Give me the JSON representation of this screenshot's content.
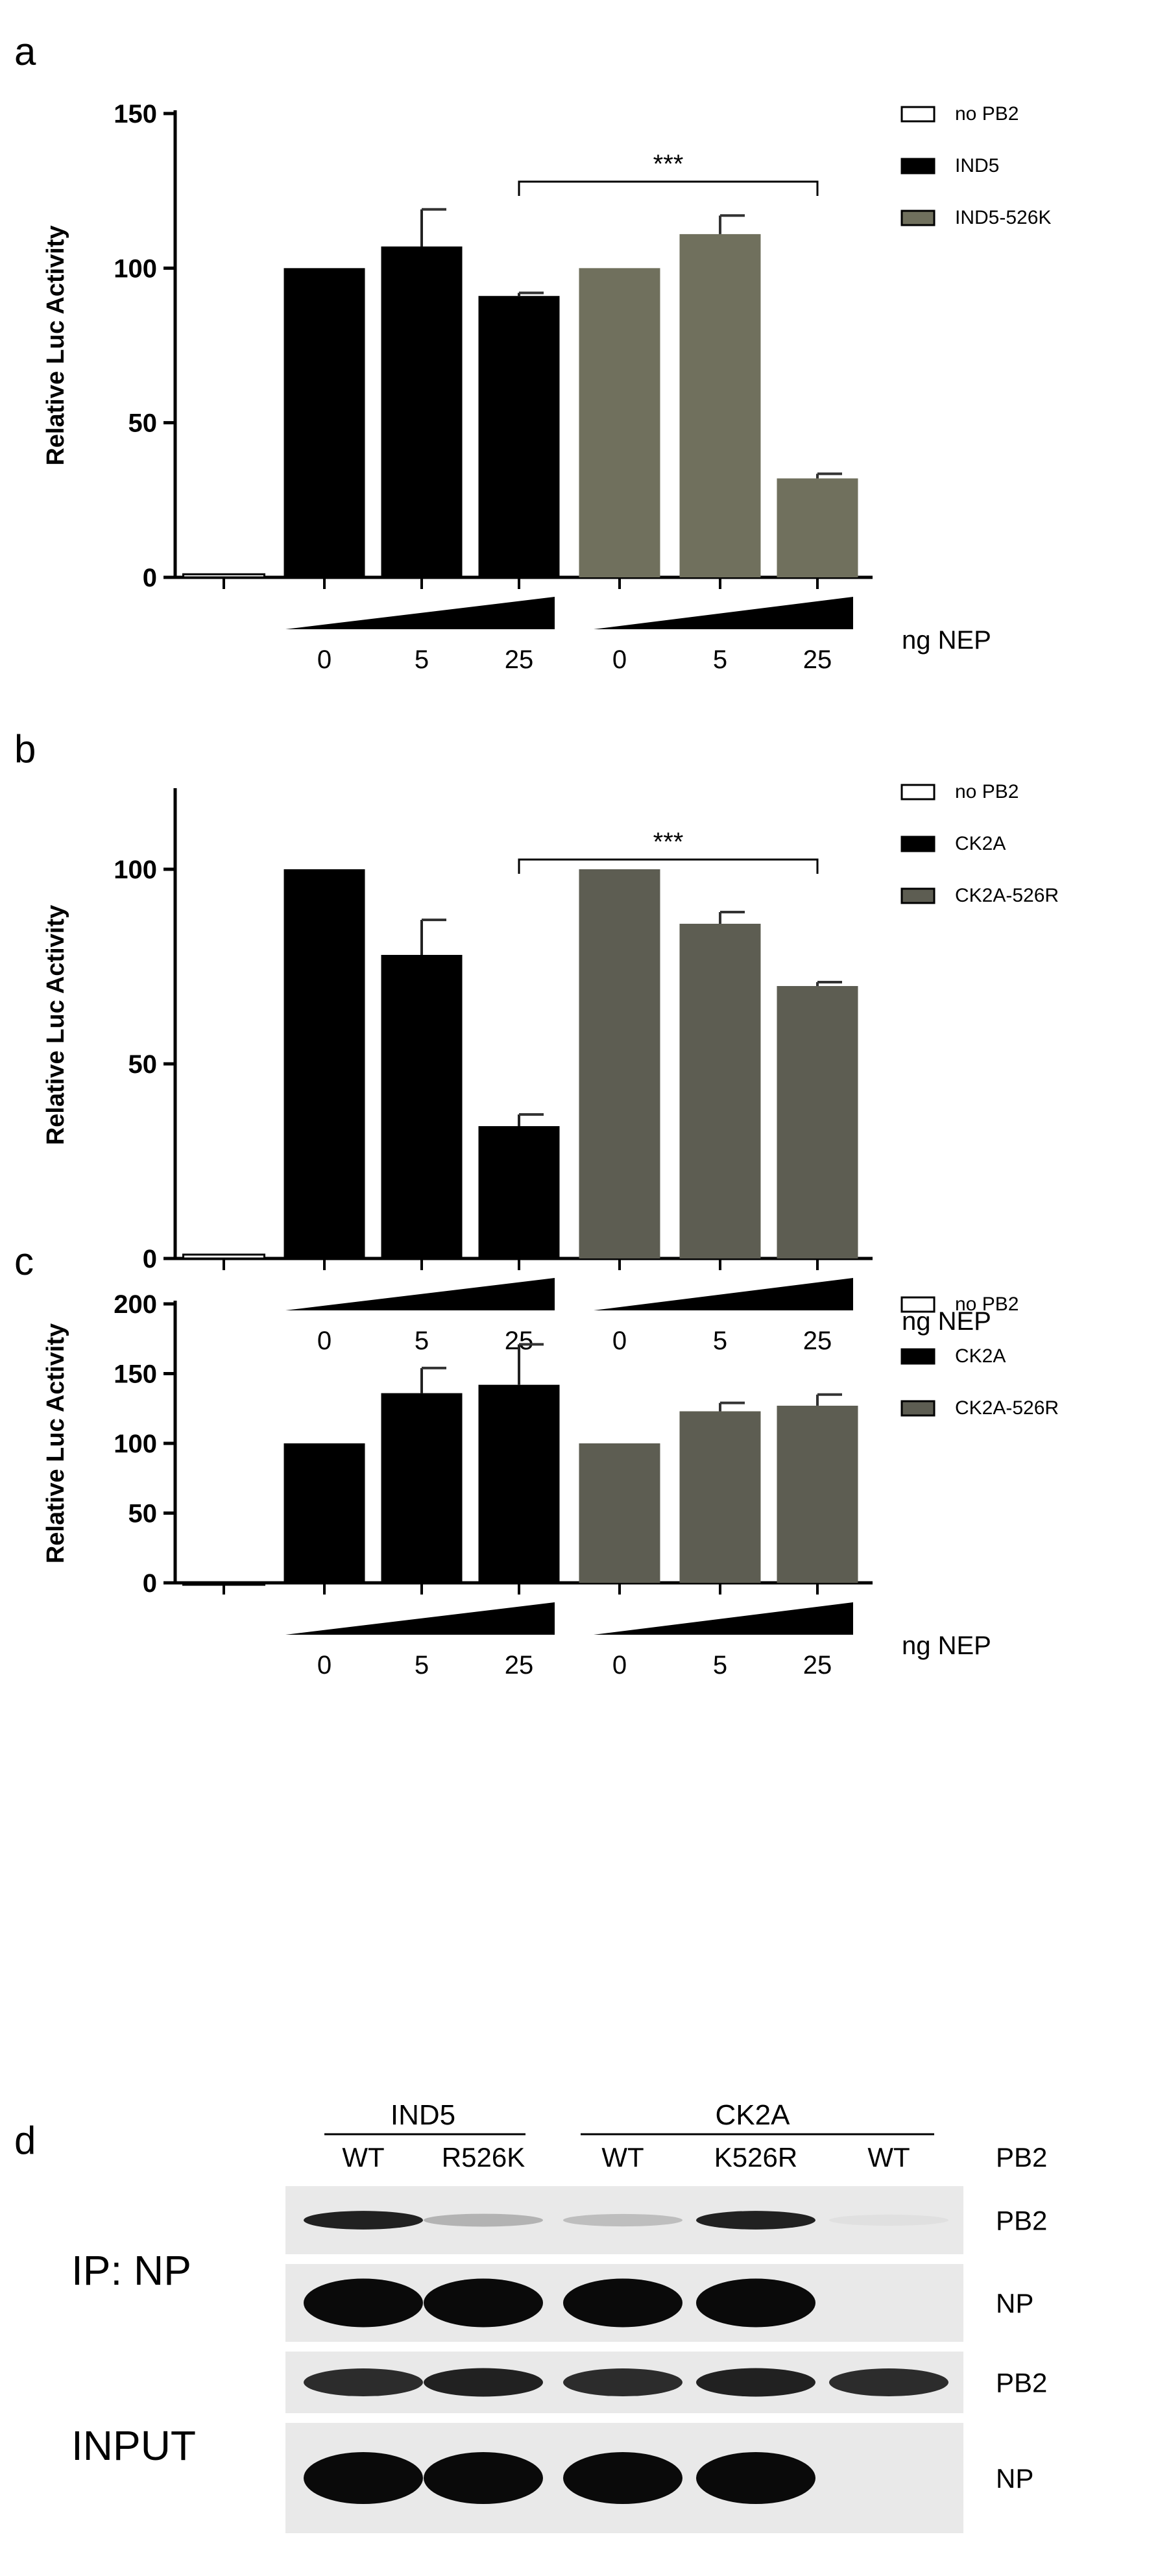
{
  "colors": {
    "no_pb2": "#ffffff",
    "ind5": "#000000",
    "ind5_526k": "#70705d",
    "ck2a": "#000000",
    "ck2a_526r": "#5d5d52",
    "text": "#111111"
  },
  "icons": {
    "significance": "bracket-icon",
    "gradient": "wedge-icon"
  },
  "chart_data": [
    {
      "panel": "a",
      "type": "bar",
      "ylabel": "Relative Luc Activity",
      "xlabel": "ng NEP",
      "ylim": [
        0,
        150
      ],
      "yticks": [
        0,
        50,
        100,
        150
      ],
      "categories": [
        "",
        "0",
        "5",
        "25",
        "0",
        "5",
        "25"
      ],
      "legend": [
        "no PB2",
        "IND5",
        "IND5-526K"
      ],
      "significance": "***",
      "series": [
        {
          "name": "no PB2",
          "color": "#ffffff",
          "values": [
            1,
            null,
            null,
            null,
            null,
            null,
            null
          ],
          "errors": [
            0,
            0,
            0,
            0,
            0,
            0,
            0
          ]
        },
        {
          "name": "IND5",
          "color": "#000000",
          "values": [
            null,
            100,
            107,
            91,
            null,
            null,
            null
          ],
          "errors": [
            0,
            0,
            12,
            1,
            0,
            0,
            0
          ]
        },
        {
          "name": "IND5-526K",
          "color": "#70705d",
          "values": [
            null,
            null,
            null,
            null,
            100,
            111,
            32
          ],
          "errors": [
            0,
            0,
            0,
            0,
            0,
            6,
            1.5
          ]
        }
      ]
    },
    {
      "panel": "b",
      "type": "bar",
      "ylabel": "Relative Luc Activity",
      "xlabel": "ng NEP",
      "ylim": [
        0,
        120
      ],
      "yticks": [
        0,
        50,
        100
      ],
      "categories": [
        "",
        "0",
        "5",
        "25",
        "0",
        "5",
        "25"
      ],
      "legend": [
        "no PB2",
        "CK2A",
        "CK2A-526R"
      ],
      "significance": "***",
      "series": [
        {
          "name": "no PB2",
          "color": "#ffffff",
          "values": [
            1,
            null,
            null,
            null,
            null,
            null,
            null
          ],
          "errors": [
            0,
            0,
            0,
            0,
            0,
            0,
            0
          ]
        },
        {
          "name": "CK2A",
          "color": "#000000",
          "values": [
            null,
            100,
            78,
            34,
            null,
            null,
            null
          ],
          "errors": [
            0,
            0,
            9,
            3,
            0,
            0,
            0
          ]
        },
        {
          "name": "CK2A-526R",
          "color": "#5d5d52",
          "values": [
            null,
            null,
            null,
            null,
            100,
            86,
            70
          ],
          "errors": [
            0,
            0,
            0,
            0,
            0,
            3,
            1
          ]
        }
      ]
    },
    {
      "panel": "c",
      "type": "bar",
      "ylabel": "Relative Luc Activity",
      "xlabel": "ng NEP",
      "ylim": [
        0,
        200
      ],
      "yticks": [
        0,
        50,
        100,
        150,
        200
      ],
      "categories": [
        "",
        "0",
        "5",
        "25",
        "0",
        "5",
        "25"
      ],
      "legend": [
        "no PB2",
        "CK2A",
        "CK2A-526R"
      ],
      "significance": "",
      "series": [
        {
          "name": "no PB2",
          "color": "#ffffff",
          "values": [
            0,
            null,
            null,
            null,
            null,
            null,
            null
          ],
          "errors": [
            0,
            0,
            0,
            0,
            0,
            0,
            0
          ]
        },
        {
          "name": "CK2A",
          "color": "#000000",
          "values": [
            null,
            100,
            136,
            142,
            null,
            null,
            null
          ],
          "errors": [
            0,
            0,
            18,
            29,
            0,
            0,
            0
          ]
        },
        {
          "name": "CK2A-526R",
          "color": "#5d5d52",
          "values": [
            null,
            null,
            null,
            null,
            100,
            123,
            127
          ],
          "errors": [
            0,
            0,
            0,
            0,
            0,
            6,
            8
          ]
        }
      ]
    }
  ],
  "blot": {
    "panel": "d",
    "groups": [
      "IND5",
      "CK2A"
    ],
    "lanes": [
      "WT",
      "R526K",
      "WT",
      "K526R",
      "WT"
    ],
    "lane_header": "PB2",
    "section_labels": [
      "IP: NP",
      "INPUT"
    ],
    "rows": [
      {
        "label": "PB2",
        "intensity": [
          0.9,
          0.25,
          0.2,
          0.9,
          0.05
        ]
      },
      {
        "label": "NP",
        "intensity": [
          1.0,
          1.0,
          1.0,
          1.0,
          0.0
        ]
      },
      {
        "label": "PB2",
        "intensity": [
          0.85,
          0.9,
          0.85,
          0.9,
          0.85
        ]
      },
      {
        "label": "NP",
        "intensity": [
          1.0,
          1.0,
          1.0,
          1.0,
          0.0
        ]
      }
    ]
  }
}
